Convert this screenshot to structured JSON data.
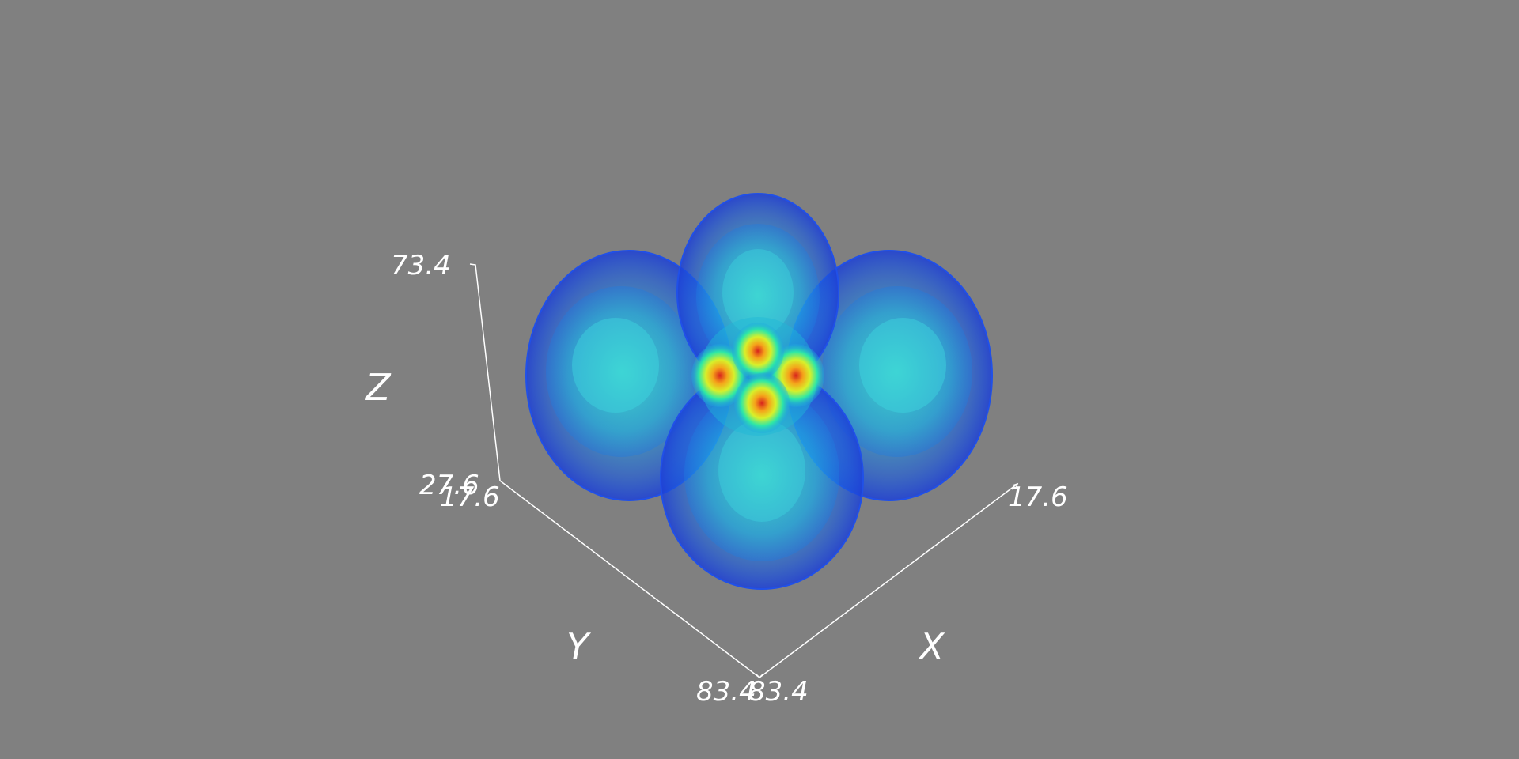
{
  "scene": {
    "background_color": "#808080",
    "colormap": [
      "#1c3fd8",
      "#1fa6e0",
      "#2ee8d6",
      "#d8f02a",
      "#f5a21a",
      "#d8231c"
    ]
  },
  "axes": {
    "x": {
      "title": "X",
      "tick_min": "83.4",
      "tick_max": "17.6"
    },
    "y": {
      "title": "Y",
      "tick_min": "83.4",
      "tick_max": "17.6"
    },
    "z": {
      "title": "Z",
      "tick_min": "27.6",
      "tick_max": "73.4"
    },
    "line_color": "#ffffff"
  }
}
